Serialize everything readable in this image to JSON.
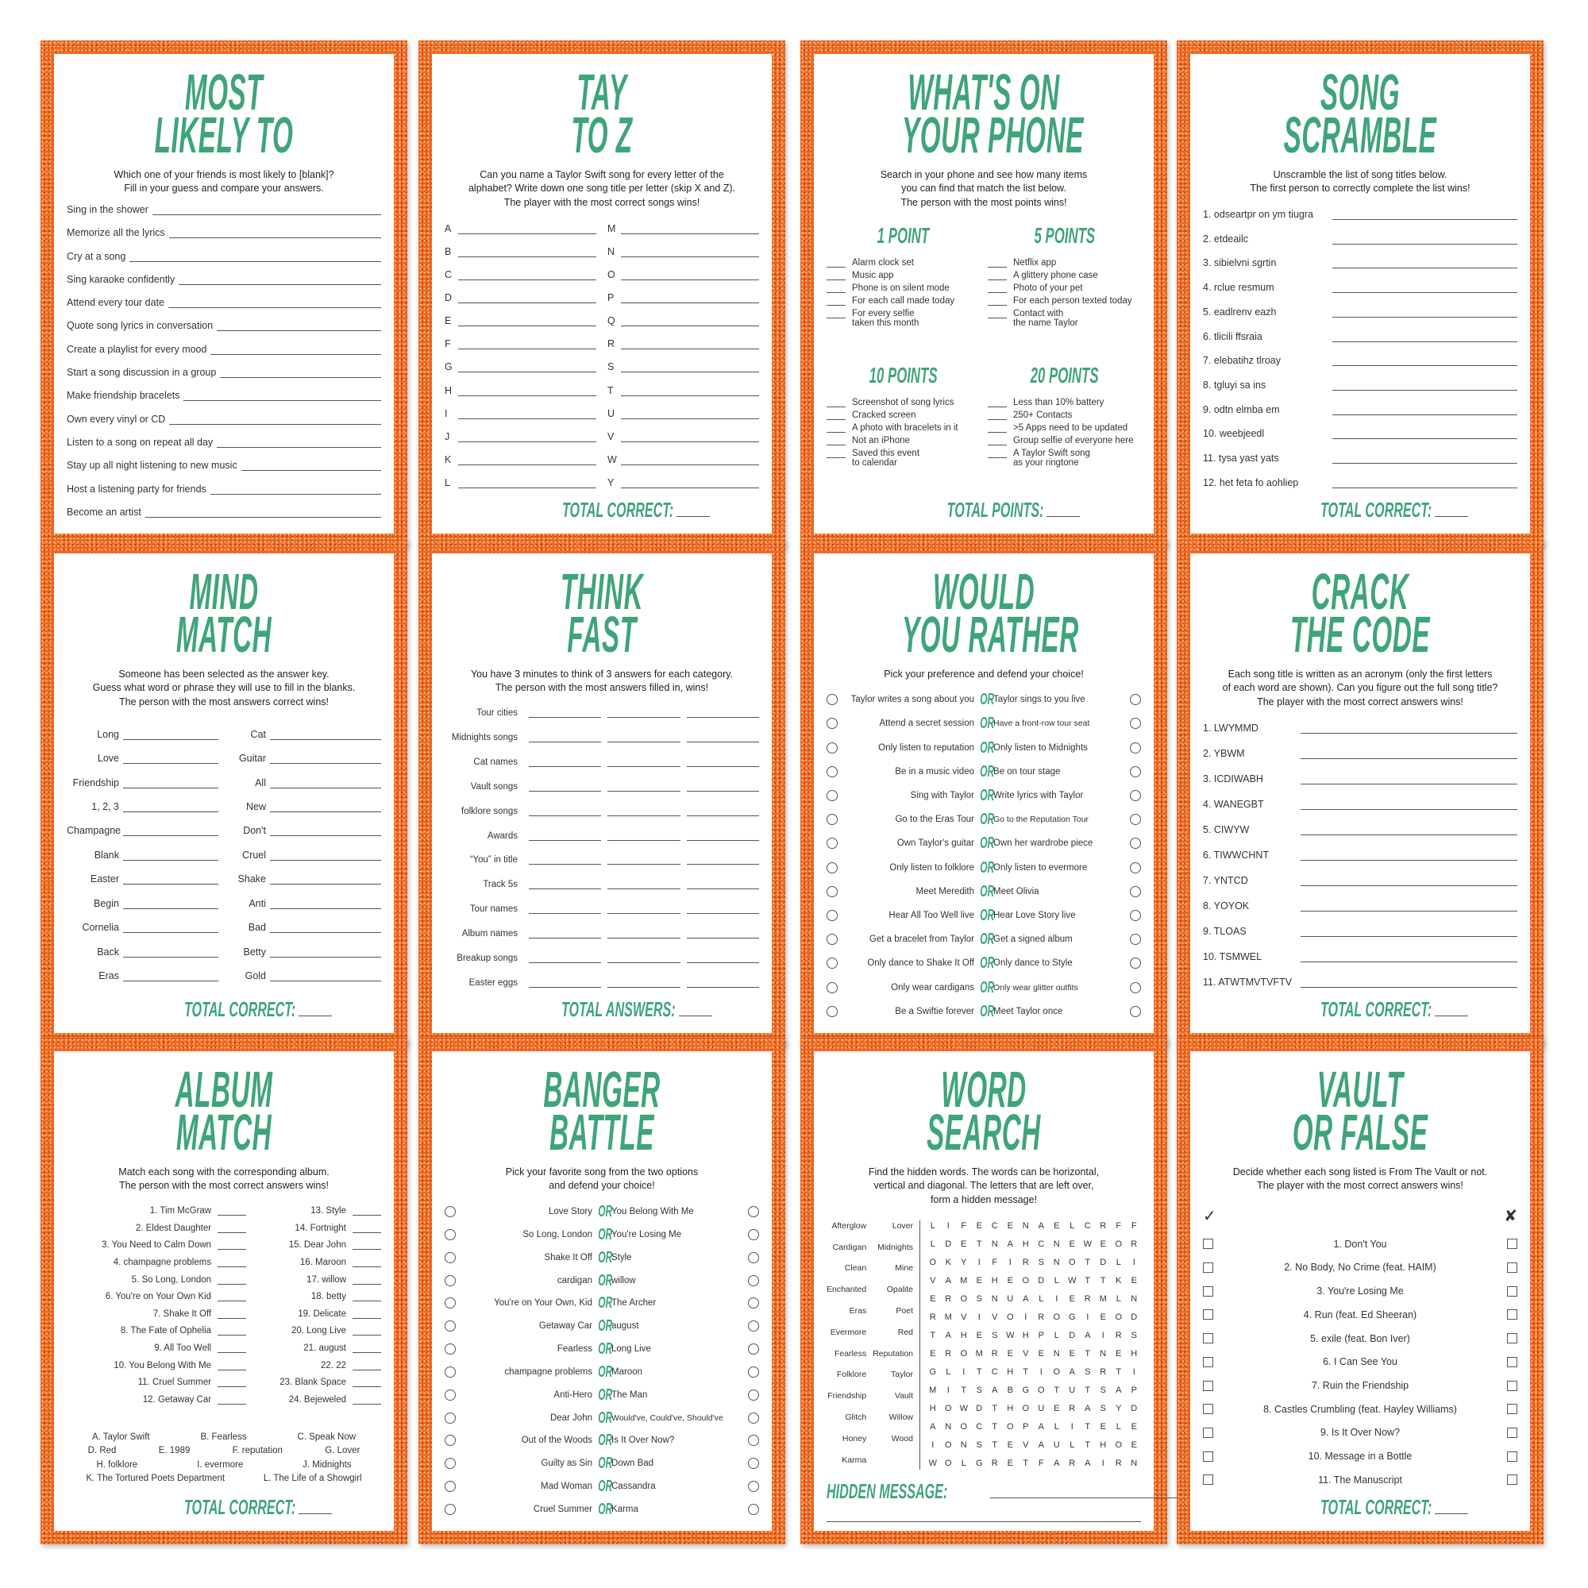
{
  "colors": {
    "accent": "#3fa47a",
    "border": "#ee6620"
  },
  "cards": [
    {
      "type": "list",
      "title": [
        "MOST",
        "LIKELY TO"
      ],
      "instructions": [
        "Which one of your friends is most likely to [blank]?",
        "Fill in your guess and compare your answers."
      ],
      "items": [
        "Sing in the shower",
        "Memorize all the lyrics",
        "Cry at a song",
        "Sing karaoke confidently",
        "Attend every tour date",
        "Quote song lyrics in conversation",
        "Create a playlist for every mood",
        "Start a song discussion in a group",
        "Make friendship bracelets",
        "Own every vinyl or CD",
        "Listen to a song on repeat all day",
        "Stay up all night listening to new music",
        "Host a listening party for friends",
        "Become an artist"
      ]
    },
    {
      "type": "letters",
      "title": [
        "TAY",
        "TO Z"
      ],
      "instructions": [
        "Can you name a Taylor Swift song for every letter of the",
        "alphabet? Write down one song title per letter (skip X and Z).",
        "The player with the most correct songs wins!"
      ],
      "left": [
        "A",
        "B",
        "C",
        "D",
        "E",
        "F",
        "G",
        "H",
        "I",
        "J",
        "K",
        "L"
      ],
      "right": [
        "M",
        "N",
        "O",
        "P",
        "Q",
        "R",
        "S",
        "T",
        "U",
        "V",
        "W",
        "Y"
      ],
      "footer": "TOTAL CORRECT:"
    },
    {
      "type": "phone",
      "title": [
        "WHAT'S ON",
        "YOUR PHONE"
      ],
      "instructions": [
        "Search in your phone and see how many items",
        "you can find that match the list below.",
        "The person with the most points wins!"
      ],
      "sections": [
        {
          "heading": "1 POINT",
          "items": [
            [
              "Alarm clock set"
            ],
            [
              "Music app"
            ],
            [
              "Phone is on silent mode"
            ],
            [
              "For each call made today"
            ],
            [
              "For every selfie",
              "taken this month"
            ]
          ]
        },
        {
          "heading": "5 POINTS",
          "items": [
            [
              "Netflix app"
            ],
            [
              "A glittery phone case"
            ],
            [
              "Photo of your pet"
            ],
            [
              "For each person texted today"
            ],
            [
              "Contact with",
              "the name Taylor"
            ]
          ]
        },
        {
          "heading": "10 POINTS",
          "items": [
            [
              "Screenshot of song lyrics"
            ],
            [
              "Cracked screen"
            ],
            [
              "A photo with bracelets in it"
            ],
            [
              "Not an iPhone"
            ],
            [
              "Saved this event",
              "to calendar"
            ]
          ]
        },
        {
          "heading": "20 POINTS",
          "items": [
            [
              "Less than 10% battery"
            ],
            [
              "250+ Contacts"
            ],
            [
              ">5 Apps need to be updated"
            ],
            [
              "Group selfie of everyone here"
            ],
            [
              "A Taylor Swift song",
              "as your ringtone"
            ]
          ]
        }
      ],
      "footer": "TOTAL POINTS:"
    },
    {
      "type": "list-aligned",
      "title": [
        "SONG",
        "SCRAMBLE"
      ],
      "instructions": [
        "Unscramble the list of song titles below.",
        "The first person to correctly complete the list wins!"
      ],
      "items": [
        "1. odseartpr on ym tiugra",
        "2. etdeailc",
        "3. sibielvni sgrtin",
        "4. rclue resmum",
        "5. eadlrenv eazh",
        "6. tlicili ffsraia",
        "7. elebatihz tlroay",
        "8. tgluyi sa ins",
        "9. odtn elmba em",
        "10. weebjeedl",
        "11. tysa yast yats",
        "12. het feta fo aohliep"
      ],
      "footer": "TOTAL CORRECT:"
    },
    {
      "type": "wordpairs",
      "title": [
        "MIND",
        "MATCH"
      ],
      "instructions": [
        "Someone has been selected as the answer key.",
        "Guess what word or phrase they will use to fill in the blanks.",
        "The person with the most answers correct wins!"
      ],
      "left": [
        "Long",
        "Love",
        "Friendship",
        "1, 2, 3",
        "Champagne",
        "Blank",
        "Easter",
        "Begin",
        "Cornelia",
        "Back",
        "Eras"
      ],
      "right": [
        "Cat",
        "Guitar",
        "All",
        "New",
        "Don't",
        "Cruel",
        "Shake",
        "Anti",
        "Bad",
        "Betty",
        "Gold"
      ],
      "footer": "TOTAL CORRECT:"
    },
    {
      "type": "categories",
      "title": [
        "THINK",
        "FAST"
      ],
      "instructions": [
        "You have 3 minutes to think of 3 answers for each category.",
        "The person with the most answers filled in, wins!"
      ],
      "items": [
        "Tour cities",
        "Midnights songs",
        "Cat names",
        "Vault songs",
        "folklore songs",
        "Awards",
        "“You” in title",
        "Track 5s",
        "Tour names",
        "Album names",
        "Breakup songs",
        "Easter eggs"
      ],
      "footer": "TOTAL ANSWERS:"
    },
    {
      "type": "choices",
      "title": [
        "WOULD",
        "YOU RATHER"
      ],
      "instructions": [
        "Pick your preference and defend your choice!"
      ],
      "or_label": "OR",
      "pairs": [
        [
          "Taylor writes a song about you",
          "Taylor sings to you live"
        ],
        [
          "Attend a secret session",
          "Have a front-row tour seat"
        ],
        [
          "Only listen to reputation",
          "Only listen to Midnights"
        ],
        [
          "Be in a music video",
          "Be on tour stage"
        ],
        [
          "Sing with Taylor",
          "Write lyrics with Taylor"
        ],
        [
          "Go to the Eras Tour",
          "Go to the Reputation Tour"
        ],
        [
          "Own Taylor's guitar",
          "Own her wardrobe piece"
        ],
        [
          "Only listen to folklore",
          "Only listen to evermore"
        ],
        [
          "Meet Meredith",
          "Meet Olivia"
        ],
        [
          "Hear All Too Well live",
          "Hear Love Story live"
        ],
        [
          "Get a bracelet from Taylor",
          "Get a signed album"
        ],
        [
          "Only dance to Shake It Off",
          "Only dance to Style"
        ],
        [
          "Only wear cardigans",
          "Only wear glitter outfits"
        ],
        [
          "Be a Swiftie forever",
          "Meet Taylor once"
        ]
      ]
    },
    {
      "type": "list-aligned",
      "title": [
        "CRACK",
        "THE CODE"
      ],
      "instructions": [
        "Each song title is written as an acronym (only the first letters",
        "of each word are shown). Can you figure out the full song title?",
        "The player with the most correct answers wins!"
      ],
      "items": [
        "1. LWYMMD",
        "2. YBWM",
        "3. ICDIWABH",
        "4. WANEGBT",
        "5. CIWYW",
        "6. TIWWCHNT",
        "7. YNTCD",
        "8. YOYOK",
        "9. TLOAS",
        "10. TSMWEL",
        "11. ATWTMVTVFTV"
      ],
      "footer": "TOTAL CORRECT:"
    },
    {
      "type": "album",
      "title": [
        "ALBUM",
        "MATCH"
      ],
      "instructions": [
        "Match each song with the corresponding album.",
        "The person with the most correct answers wins!"
      ],
      "left": [
        "1. Tim McGraw",
        "2. Eldest Daughter",
        "3. You Need to Calm Down",
        "4. champagne problems",
        "5. So Long, London",
        "6. You're on Your Own Kid",
        "7. Shake It Off",
        "8. The Fate of Ophelia",
        "9. All Too Well",
        "10. You Belong With Me",
        "11. Cruel Summer",
        "12. Getaway Car"
      ],
      "right": [
        "13. Style",
        "14. Fortnight",
        "15. Dear John",
        "16. Maroon",
        "17. willow",
        "18. betty",
        "19. Delicate",
        "20. Long Live",
        "21. august",
        "22. 22",
        "23. Blank Space",
        "24. Bejeweled"
      ],
      "key": [
        [
          "A. Taylor Swift",
          "B. Fearless",
          "C. Speak Now"
        ],
        [
          "D. Red",
          "E. 1989",
          "F. reputation",
          "G. Lover"
        ],
        [
          "H. folklore",
          "I. evermore",
          "J. Midnights"
        ],
        [
          "K. The Tortured Poets Department",
          "L. The Life of a Showgirl"
        ]
      ],
      "footer": "TOTAL CORRECT:"
    },
    {
      "type": "choices",
      "title": [
        "BANGER",
        "BATTLE"
      ],
      "instructions": [
        "Pick your favorite song from the two options",
        "and defend your choice!"
      ],
      "or_label": "OR",
      "pairs": [
        [
          "Love Story",
          "You Belong With Me"
        ],
        [
          "So Long, London",
          "You're Losing Me"
        ],
        [
          "Shake It Off",
          "Style"
        ],
        [
          "cardigan",
          "willow"
        ],
        [
          "You're on Your Own, Kid",
          "The Archer"
        ],
        [
          "Getaway Car",
          "august"
        ],
        [
          "Fearless",
          "Long Live"
        ],
        [
          "champagne problems",
          "Maroon"
        ],
        [
          "Anti-Hero",
          "The Man"
        ],
        [
          "Dear John",
          "Would've, Could've, Should've"
        ],
        [
          "Out of the Woods",
          "Is It Over Now?"
        ],
        [
          "Guilty as Sin",
          "Down Bad"
        ],
        [
          "Mad Woman",
          "Cassandra"
        ],
        [
          "Cruel Summer",
          "Karma"
        ]
      ]
    },
    {
      "type": "wordsearch",
      "title": [
        "WORD",
        "SEARCH"
      ],
      "instructions": [
        "Find the hidden words. The words can be horizontal,",
        "vertical and diagonal. The letters that are left over,",
        "form a hidden message!"
      ],
      "words_left": [
        "Afterglow",
        "Cardigan",
        "Clean",
        "Enchanted",
        "Eras",
        "Evermore",
        "Fearless",
        "Folklore",
        "Friendship",
        "Glitch",
        "Honey",
        "Karma"
      ],
      "words_right": [
        "Lover",
        "Midnights",
        "Mine",
        "Opalite",
        "Poet",
        "Red",
        "Reputation",
        "Taylor",
        "Vault",
        "Willow",
        "Wood"
      ],
      "grid": [
        "LIFECENAELCRFF",
        "LDETNAHCNEWEOR",
        "OKYIFIRSNOTDLI",
        "VAMEHEODLWTTKE",
        "EROSNUALIERMLN",
        "RMVIVOIROGIEOD",
        "TAHESWHPLDAIRS",
        "EROMREVENETNEH",
        "GLITCHTIOASRTI",
        "MITSABGOTUTSAP",
        "HOWDTHOUERASYD",
        "ANOCTOPALITELE",
        "IONSTEVAULTHOE",
        "WOLGRETFARAIRN"
      ],
      "footer": "HIDDEN MESSAGE:"
    },
    {
      "type": "vault",
      "title": [
        "VAULT",
        "OR FALSE"
      ],
      "instructions": [
        "Decide whether each song listed is From The Vault or not.",
        "The player with the most correct answers wins!"
      ],
      "check_icon": "✓",
      "x_icon": "✘",
      "items": [
        "1. Don't You",
        "2. No Body, No Crime (feat. HAIM)",
        "3. You're Losing Me",
        "4. Run (feat. Ed Sheeran)",
        "5. exile (feat. Bon Iver)",
        "6. I Can See You",
        "7. Ruin the Friendship",
        "8. Castles Crumbling (feat. Hayley Williams)",
        "9. Is It Over Now?",
        "10. Message in a Bottle",
        "11. The Manuscript"
      ],
      "footer": "TOTAL CORRECT:"
    }
  ]
}
